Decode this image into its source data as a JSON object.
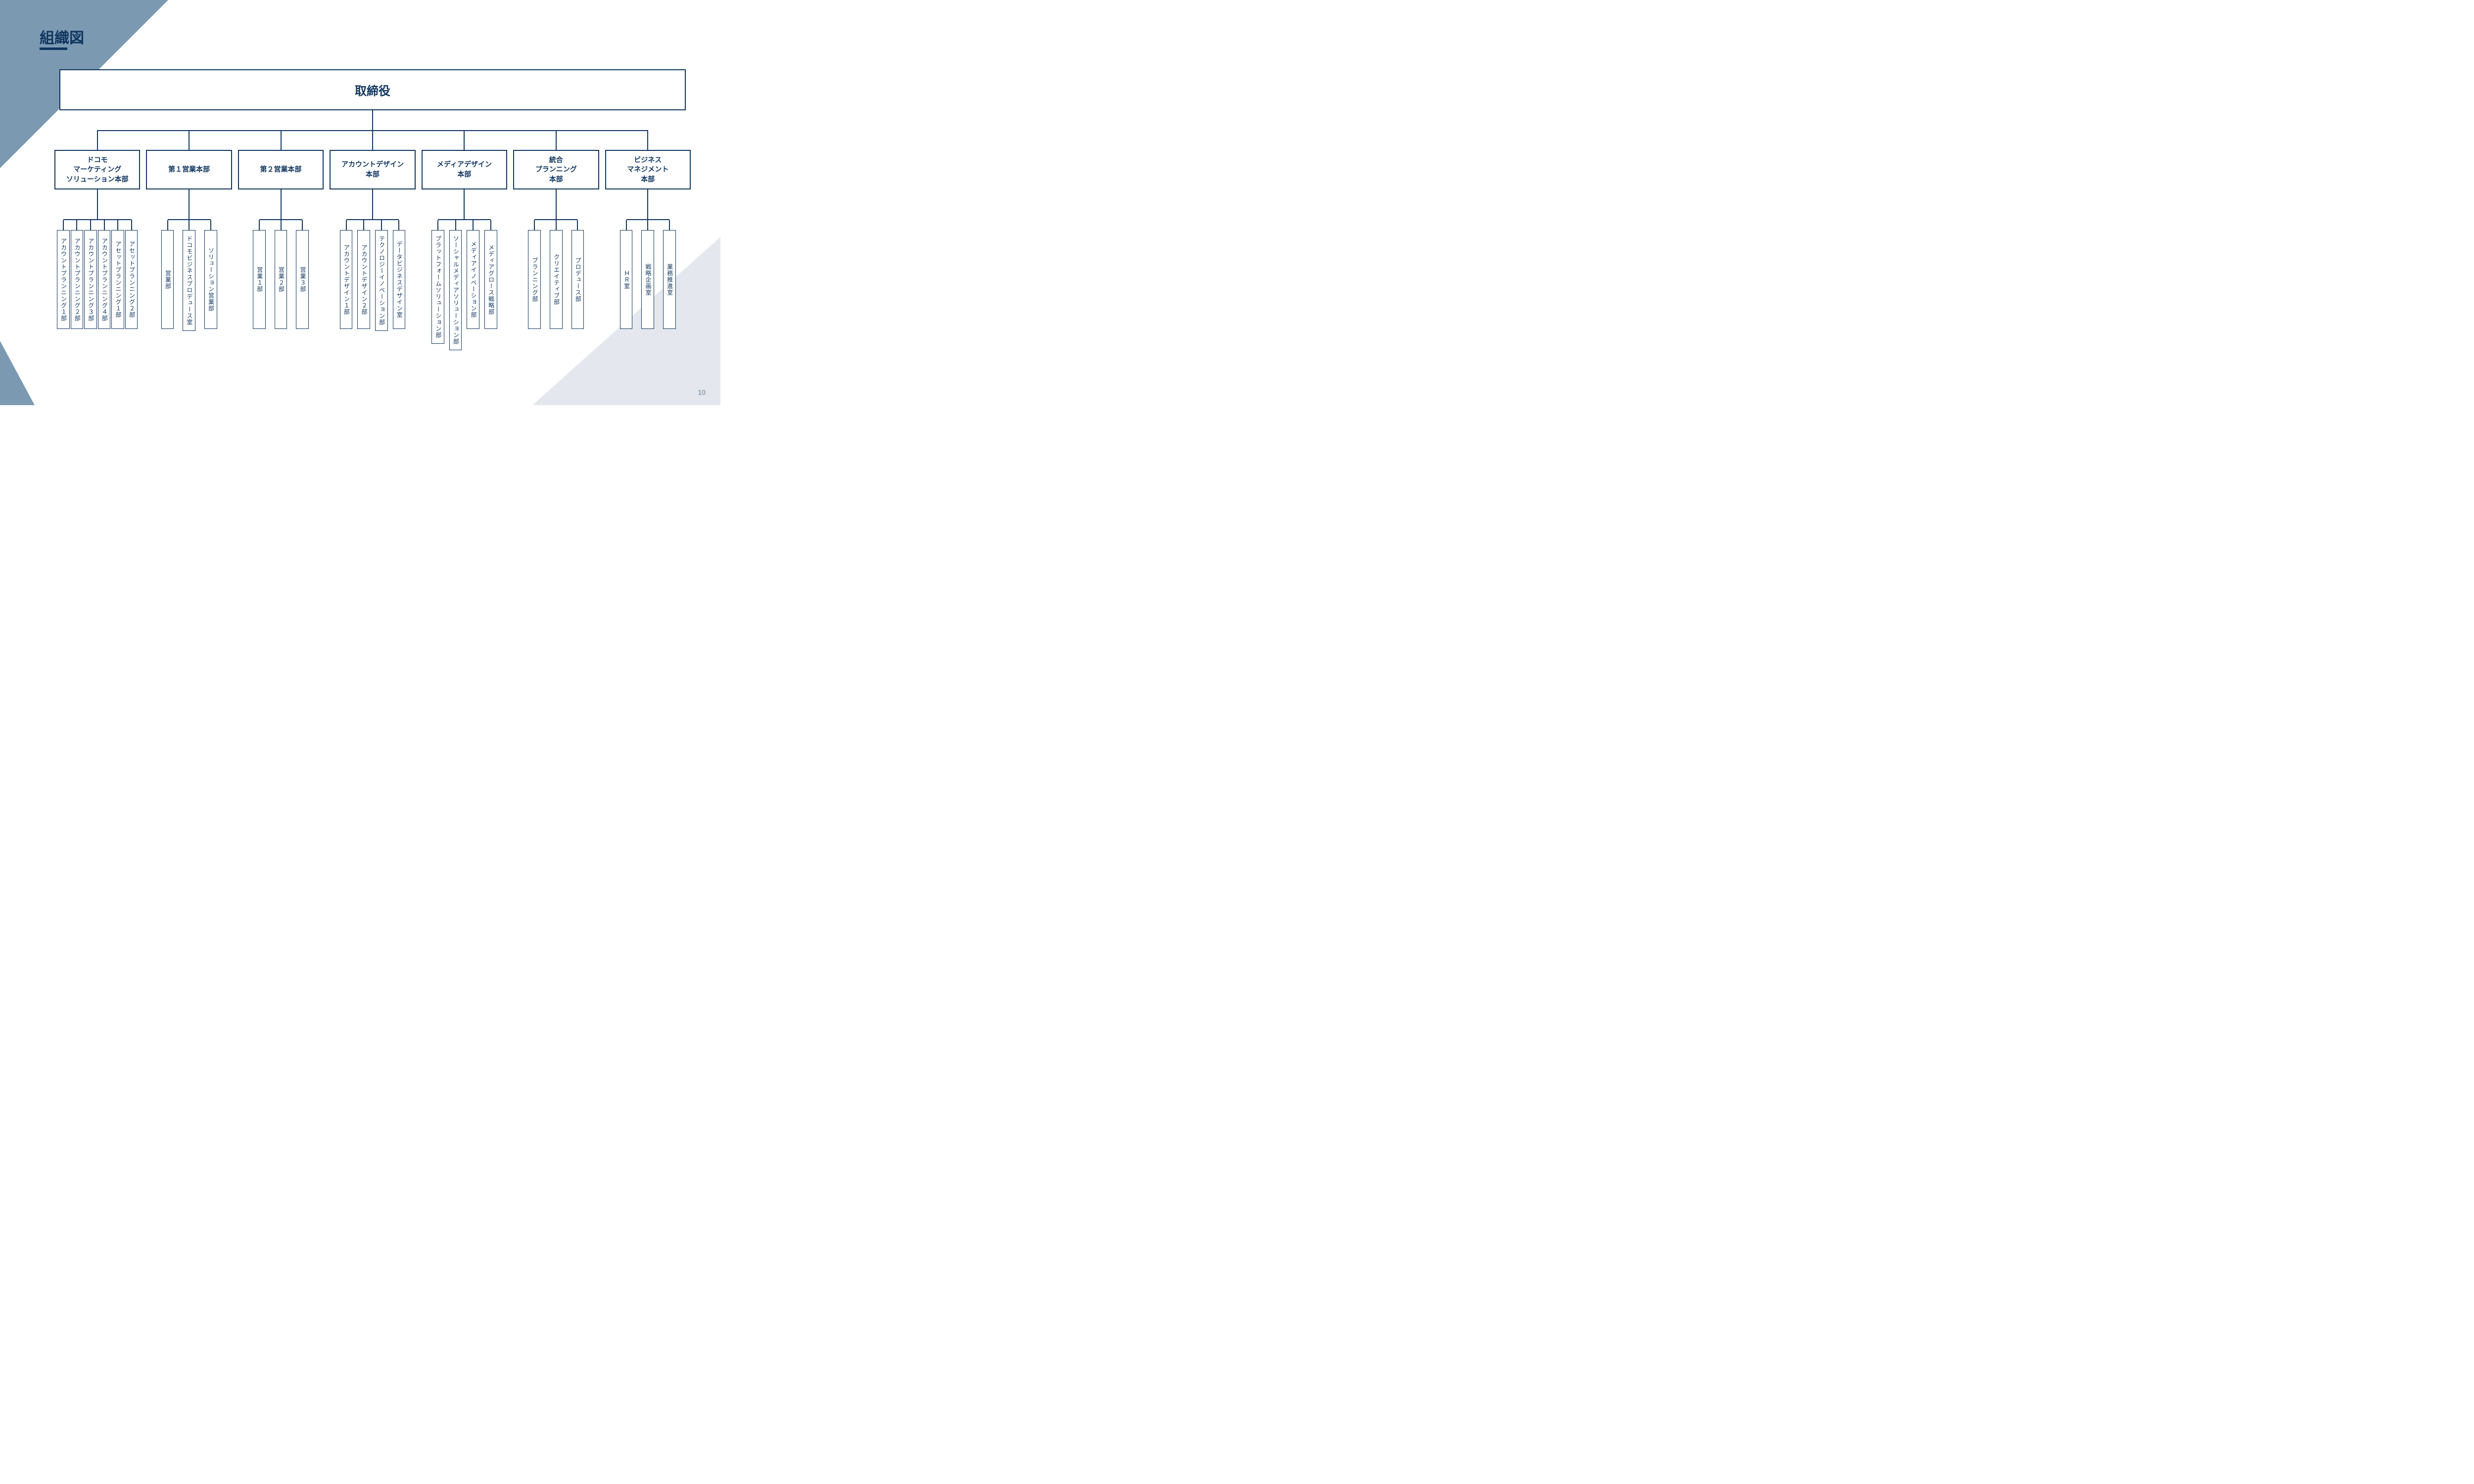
{
  "title": "組織図",
  "page_number": "10",
  "colors": {
    "primary": "#0f355e",
    "accent_triangle": "#7c99b2",
    "light_triangle": "#e4e8ee",
    "background": "#ffffff"
  },
  "org": {
    "root": "取締役",
    "divisions": [
      {
        "label": "ドコモ\nマーケティング\nソリューション本部",
        "dept_gap": 2,
        "departments": [
          "アカウントプランニング１部",
          "アカウントプランニング２部",
          "アカウントプランニング３部",
          "アカウントプランニング４部",
          "アセットプランニング１部",
          "アセットプランニング２部"
        ]
      },
      {
        "label": "第１営業本部",
        "dept_gap": 18,
        "departments": [
          "営業部",
          "ドコモビジネスプロデュース室",
          "ソリューション営業部"
        ]
      },
      {
        "label": "第２営業本部",
        "dept_gap": 18,
        "departments": [
          "営業１部",
          "営業２部",
          "営業３部"
        ]
      },
      {
        "label": "アカウントデザイン\n本部",
        "dept_gap": 10,
        "departments": [
          "アカウントデザイン１部",
          "アカウントデザイン２部",
          "テクノロジーイノベーション部",
          "データビジネスデザイン室"
        ]
      },
      {
        "label": "メディアデザイン\n本部",
        "dept_gap": 10,
        "departments": [
          "プラットフォームソリューション部",
          "ソーシャルメディアソリューション部",
          "メディアイノベーション部",
          "メディアグロース戦略部"
        ]
      },
      {
        "label": "統合\nプランニング\n本部",
        "dept_gap": 18,
        "departments": [
          "プランニング部",
          "クリエイティブ部",
          "プロデュース部"
        ]
      },
      {
        "label": "ビジネス\nマネジメント\n本部",
        "dept_gap": 18,
        "departments": [
          "ＨＲ室",
          "戦略企画室",
          "業務推進室"
        ]
      }
    ]
  }
}
